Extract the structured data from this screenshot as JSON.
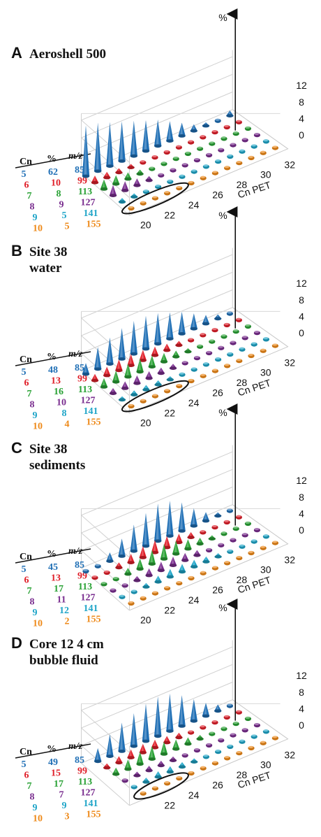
{
  "chart_data": [
    {
      "type": "3d-cone",
      "letter": "A",
      "title_lines": [
        "Aeroshell 500"
      ],
      "x_label": "Cn PET",
      "x_ticks": [
        "20",
        "22",
        "24",
        "26",
        "28",
        "30",
        "32"
      ],
      "z_label": "%",
      "z_ticks": [
        "0",
        "4",
        "8",
        "12"
      ],
      "zlim": [
        0,
        12
      ],
      "legend_headers": [
        "Cn",
        "%",
        "m/z"
      ],
      "legend": [
        {
          "cn": "5",
          "pct": "62",
          "mz": "85",
          "color": "#1f6fb5"
        },
        {
          "cn": "6",
          "pct": "10",
          "mz": "99",
          "color": "#e0202a"
        },
        {
          "cn": "7",
          "pct": "8",
          "mz": "113",
          "color": "#2aa236"
        },
        {
          "cn": "8",
          "pct": "9",
          "mz": "127",
          "color": "#7a2e8f"
        },
        {
          "cn": "9",
          "pct": "5",
          "mz": "141",
          "color": "#1fa5c8"
        },
        {
          "cn": "10",
          "pct": "5",
          "mz": "155",
          "color": "#ee8a1a"
        }
      ],
      "x": [
        20,
        21,
        22,
        23,
        24,
        25,
        26,
        27,
        28,
        29,
        30,
        31,
        32
      ],
      "series": [
        {
          "name": "5",
          "values": [
            11.5,
            11,
            10,
            9,
            8,
            7,
            6,
            4.5,
            3,
            1.5,
            0.8,
            0.3,
            1.2
          ]
        },
        {
          "name": "6",
          "values": [
            1.6,
            1.3,
            1.0,
            0.8,
            0.6,
            0.5,
            0.4,
            0.3,
            0.3,
            0.2,
            0.2,
            0.2,
            0.2
          ]
        },
        {
          "name": "7",
          "values": [
            2.2,
            2.0,
            1.5,
            1.0,
            0.6,
            0.5,
            0.4,
            0.3,
            0.3,
            0.2,
            0.2,
            0.2,
            0.2
          ]
        },
        {
          "name": "8",
          "values": [
            2.4,
            2.1,
            1.6,
            1.0,
            0.6,
            0.4,
            0.3,
            0.3,
            0.2,
            0.2,
            0.2,
            0.2,
            0.2
          ]
        },
        {
          "name": "9",
          "values": [
            0.9,
            0.8,
            0.6,
            0.5,
            0.4,
            0.3,
            0.3,
            0.2,
            0.2,
            0.2,
            0.2,
            0.2,
            0.2
          ]
        },
        {
          "name": "10",
          "values": [
            0.3,
            0.3,
            0.3,
            0.3,
            0.3,
            0.3,
            0.2,
            0.2,
            0.2,
            0.2,
            0.2,
            0.2,
            0.2
          ]
        }
      ],
      "ellipse": {
        "row": 5,
        "from": 20,
        "to": 24
      }
    },
    {
      "type": "3d-cone",
      "letter": "B",
      "title_lines": [
        "Site 38",
        "water"
      ],
      "x_label": "Cn PET",
      "x_ticks": [
        "20",
        "22",
        "24",
        "26",
        "28",
        "30",
        "32"
      ],
      "z_label": "%",
      "z_ticks": [
        "0",
        "4",
        "8",
        "12"
      ],
      "zlim": [
        0,
        12
      ],
      "legend_headers": [
        "Cn",
        "%",
        "m/z"
      ],
      "legend": [
        {
          "cn": "5",
          "pct": "48",
          "mz": "85",
          "color": "#1f6fb5"
        },
        {
          "cn": "6",
          "pct": "13",
          "mz": "99",
          "color": "#e0202a"
        },
        {
          "cn": "7",
          "pct": "16",
          "mz": "113",
          "color": "#2aa236"
        },
        {
          "cn": "8",
          "pct": "10",
          "mz": "127",
          "color": "#7a2e8f"
        },
        {
          "cn": "9",
          "pct": "8",
          "mz": "141",
          "color": "#1fa5c8"
        },
        {
          "cn": "10",
          "pct": "4",
          "mz": "155",
          "color": "#ee8a1a"
        }
      ],
      "x": [
        20,
        21,
        22,
        23,
        24,
        25,
        26,
        27,
        28,
        29,
        30,
        31,
        32
      ],
      "series": [
        {
          "name": "5",
          "values": [
            2.5,
            5,
            6,
            7,
            7.5,
            7.5,
            7,
            6,
            5,
            3.5,
            2,
            1,
            0.5
          ]
        },
        {
          "name": "6",
          "values": [
            1.5,
            2.0,
            2.5,
            2.6,
            2.4,
            2.0,
            1.5,
            1.0,
            0.6,
            0.4,
            0.3,
            0.2,
            0.2
          ]
        },
        {
          "name": "7",
          "values": [
            2.0,
            2.6,
            3.0,
            3.0,
            2.6,
            2.0,
            1.4,
            0.8,
            0.5,
            0.3,
            0.2,
            0.2,
            0.2
          ]
        },
        {
          "name": "8",
          "values": [
            1.2,
            1.6,
            1.8,
            1.6,
            1.3,
            1.0,
            0.6,
            0.4,
            0.3,
            0.2,
            0.2,
            0.2,
            0.2
          ]
        },
        {
          "name": "9",
          "values": [
            0.8,
            1.0,
            1.1,
            1.0,
            0.8,
            0.6,
            0.4,
            0.3,
            0.2,
            0.2,
            0.2,
            0.2,
            0.2
          ]
        },
        {
          "name": "10",
          "values": [
            0.3,
            0.3,
            0.3,
            0.3,
            0.3,
            0.3,
            0.2,
            0.2,
            0.2,
            0.2,
            0.2,
            0.2,
            0.2
          ]
        }
      ],
      "ellipse": {
        "row": 5,
        "from": 20,
        "to": 24
      }
    },
    {
      "type": "3d-cone",
      "letter": "C",
      "title_lines": [
        "Site 38",
        "sediments"
      ],
      "x_label": "Cn PET",
      "x_ticks": [
        "20",
        "22",
        "24",
        "26",
        "28",
        "30",
        "32"
      ],
      "z_label": "%",
      "z_ticks": [
        "0",
        "4",
        "8",
        "12"
      ],
      "zlim": [
        0,
        12
      ],
      "legend_headers": [
        "Cn",
        "%",
        "m/z"
      ],
      "legend": [
        {
          "cn": "5",
          "pct": "45",
          "mz": "85",
          "color": "#1f6fb5"
        },
        {
          "cn": "6",
          "pct": "13",
          "mz": "99",
          "color": "#e0202a"
        },
        {
          "cn": "7",
          "pct": "17",
          "mz": "113",
          "color": "#2aa236"
        },
        {
          "cn": "8",
          "pct": "11",
          "mz": "127",
          "color": "#7a2e8f"
        },
        {
          "cn": "9",
          "pct": "12",
          "mz": "141",
          "color": "#1fa5c8"
        },
        {
          "cn": "10",
          "pct": "2",
          "mz": "155",
          "color": "#ee8a1a"
        }
      ],
      "x": [
        20,
        21,
        22,
        23,
        24,
        25,
        26,
        27,
        28,
        29,
        30,
        31,
        32
      ],
      "series": [
        {
          "name": "5",
          "values": [
            0.3,
            0.3,
            2,
            4,
            6,
            7.5,
            8.5,
            8,
            6.5,
            4,
            2,
            0.8,
            0.3
          ]
        },
        {
          "name": "6",
          "values": [
            0.2,
            0.4,
            1.2,
            2.0,
            2.6,
            2.8,
            2.6,
            2.0,
            1.2,
            0.6,
            0.3,
            0.2,
            0.2
          ]
        },
        {
          "name": "7",
          "values": [
            0.2,
            0.5,
            1.4,
            2.4,
            3.2,
            3.4,
            3.0,
            2.2,
            1.4,
            0.8,
            0.4,
            0.2,
            0.2
          ]
        },
        {
          "name": "8",
          "values": [
            0.2,
            0.4,
            1.0,
            1.6,
            2.0,
            2.0,
            1.7,
            1.2,
            0.7,
            0.4,
            0.2,
            0.2,
            0.2
          ]
        },
        {
          "name": "9",
          "values": [
            0.2,
            0.4,
            0.9,
            1.4,
            1.8,
            1.8,
            1.6,
            1.2,
            0.8,
            0.4,
            0.3,
            0.2,
            0.2
          ]
        },
        {
          "name": "10",
          "values": [
            0.2,
            0.2,
            0.2,
            0.2,
            0.2,
            0.2,
            0.2,
            0.2,
            0.2,
            0.2,
            0.2,
            0.2,
            0.2
          ]
        }
      ]
    },
    {
      "type": "3d-cone",
      "letter": "D",
      "title_lines": [
        "Core 12 4 cm",
        "bubble fluid"
      ],
      "x_label": "Cn PET",
      "x_ticks": [
        "22",
        "24",
        "26",
        "28",
        "30",
        "32"
      ],
      "z_label": "%",
      "z_ticks": [
        "0",
        "4",
        "8",
        "12"
      ],
      "zlim": [
        0,
        12
      ],
      "legend_headers": [
        "Cn",
        "%",
        "m/z"
      ],
      "legend": [
        {
          "cn": "5",
          "pct": "49",
          "mz": "85",
          "color": "#1f6fb5"
        },
        {
          "cn": "6",
          "pct": "15",
          "mz": "99",
          "color": "#e0202a"
        },
        {
          "cn": "7",
          "pct": "17",
          "mz": "113",
          "color": "#2aa236"
        },
        {
          "cn": "8",
          "pct": "7",
          "mz": "127",
          "color": "#7a2e8f"
        },
        {
          "cn": "9",
          "pct": "9",
          "mz": "141",
          "color": "#1fa5c8"
        },
        {
          "cn": "10",
          "pct": "3",
          "mz": "155",
          "color": "#ee8a1a"
        }
      ],
      "x": [
        21,
        22,
        23,
        24,
        25,
        26,
        27,
        28,
        29,
        30,
        31,
        32
      ],
      "series": [
        {
          "name": "5",
          "values": [
            3,
            5,
            6.5,
            7.5,
            8.5,
            9,
            8.5,
            7,
            5,
            3,
            1.5,
            0.5
          ]
        },
        {
          "name": "6",
          "values": [
            1.0,
            1.5,
            1.9,
            2.0,
            1.8,
            1.5,
            1.1,
            0.7,
            0.4,
            0.3,
            0.2,
            0.2
          ]
        },
        {
          "name": "7",
          "values": [
            1.5,
            2.2,
            2.8,
            3.0,
            2.8,
            2.2,
            1.5,
            0.9,
            0.5,
            0.3,
            0.2,
            0.2
          ]
        },
        {
          "name": "8",
          "values": [
            0.6,
            0.9,
            1.1,
            1.1,
            0.9,
            0.7,
            0.5,
            0.3,
            0.2,
            0.2,
            0.2,
            0.2
          ]
        },
        {
          "name": "9",
          "values": [
            0.7,
            1.0,
            1.3,
            1.3,
            1.1,
            0.8,
            0.6,
            0.4,
            0.3,
            0.2,
            0.2,
            0.2
          ]
        },
        {
          "name": "10",
          "values": [
            0.3,
            0.3,
            0.3,
            0.3,
            0.3,
            0.3,
            0.2,
            0.2,
            0.2,
            0.2,
            0.2,
            0.2
          ]
        }
      ],
      "ellipse": {
        "row": 5,
        "from": 21,
        "to": 24
      }
    }
  ]
}
